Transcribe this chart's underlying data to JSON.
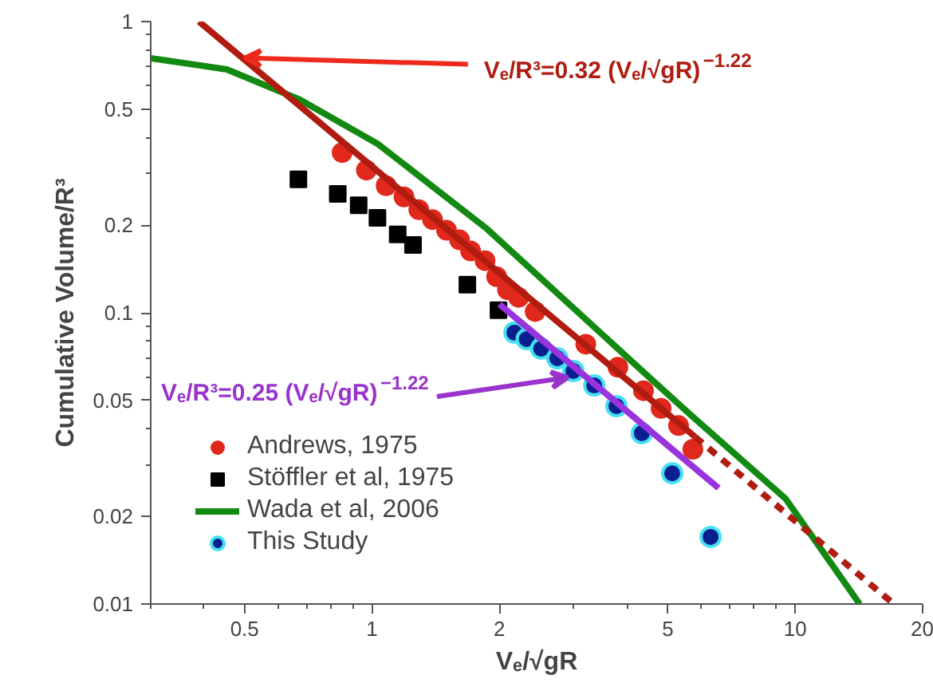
{
  "chart_data": {
    "type": "scatter",
    "xlabel": "Vₑ/√gR",
    "ylabel": "Cumulative Volume/R³",
    "log": "xy",
    "xlim": [
      0.3,
      20
    ],
    "ylim": [
      0.01,
      1
    ],
    "xticks": [
      0.5,
      1,
      2,
      5,
      10,
      20
    ],
    "yticks": [
      0.01,
      0.02,
      0.05,
      0.1,
      0.2,
      0.5,
      1
    ],
    "grid": false,
    "legend": "bottom left",
    "annotations": [
      {
        "text": "Vₑ/R³=0.32 (Vₑ/√gR)$^{−1.22}$",
        "x": 0.5,
        "y": 0.75
      },
      {
        "text": "Vₑ/R³=0.25 (Vₑ/√gR)$^{−1.22}$",
        "x": 2.9,
        "y": 0.06
      }
    ],
    "series": [
      {
        "name": "Andrews, 1975",
        "marker": "circle",
        "color": "#e0281c",
        "x": [
          0.85,
          0.97,
          1.08,
          1.19,
          1.29,
          1.39,
          1.5,
          1.61,
          1.71,
          1.85,
          1.97,
          2.09,
          2.22,
          2.43,
          3.2,
          3.81,
          4.38,
          4.82,
          5.3,
          5.73
        ],
        "values": [
          0.355,
          0.309,
          0.273,
          0.25,
          0.226,
          0.209,
          0.192,
          0.178,
          0.163,
          0.151,
          0.133,
          0.12,
          0.113,
          0.101,
          0.078,
          0.065,
          0.054,
          0.047,
          0.041,
          0.034
        ]
      },
      {
        "name": "Stöffler et al, 1975",
        "marker": "square",
        "color": "#000000",
        "x": [
          0.67,
          0.83,
          0.93,
          1.03,
          1.15,
          1.25,
          1.68,
          1.99
        ],
        "values": [
          0.287,
          0.256,
          0.234,
          0.212,
          0.186,
          0.171,
          0.125,
          0.102
        ]
      },
      {
        "name": "Wada et al, 2006",
        "type": "line",
        "marker": "none",
        "line_style": "solid",
        "color": "#128a12",
        "x": [
          0.3,
          0.454,
          0.676,
          1.035,
          1.87,
          4.27,
          5.69,
          9.49,
          14.2
        ],
        "values": [
          0.748,
          0.685,
          0.539,
          0.379,
          0.194,
          0.0647,
          0.0443,
          0.023,
          0.01
        ]
      },
      {
        "name": "This Study",
        "marker": "circle",
        "color": "#0a1f8f",
        "x": [
          2.17,
          2.32,
          2.51,
          2.74,
          2.99,
          3.35,
          3.78,
          4.34,
          5.12,
          6.31
        ],
        "values": [
          0.0855,
          0.0812,
          0.0753,
          0.0698,
          0.0631,
          0.0563,
          0.0478,
          0.0386,
          0.0281,
          0.017
        ]
      },
      {
        "type": "line",
        "marker": "none",
        "line_style": "solid",
        "color": "#b01c10",
        "x": [
          0.39,
          5.8
        ],
        "values": [
          1.0,
          0.0375
        ]
      },
      {
        "type": "line",
        "marker": "none",
        "line_style": "dashed",
        "color": "#b01c10",
        "x": [
          5.8,
          17.1
        ],
        "values": [
          0.0375,
          0.01
        ]
      },
      {
        "type": "line",
        "marker": "none",
        "line_style": "solid",
        "color": "#9933dd",
        "x": [
          2.0,
          6.59
        ],
        "values": [
          0.107,
          0.025
        ]
      }
    ]
  }
}
